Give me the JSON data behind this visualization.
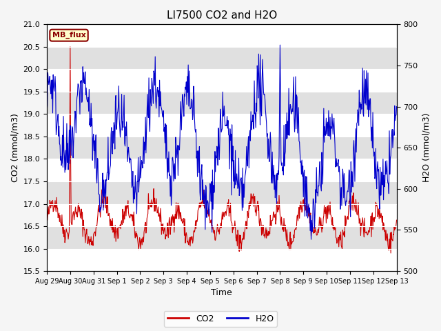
{
  "title": "LI7500 CO2 and H2O",
  "xlabel": "Time",
  "ylabel_left": "CO2 (mmol/m3)",
  "ylabel_right": "H2O (mmol/m3)",
  "ylim_left": [
    15.5,
    21.0
  ],
  "ylim_right": [
    500,
    800
  ],
  "yticks_left": [
    15.5,
    16.0,
    16.5,
    17.0,
    17.5,
    18.0,
    18.5,
    19.0,
    19.5,
    20.0,
    20.5,
    21.0
  ],
  "yticks_right": [
    500,
    550,
    600,
    650,
    700,
    750,
    800
  ],
  "xtick_labels": [
    "Aug 29",
    "Aug 30",
    "Aug 31",
    "Sep 1",
    "Sep 2",
    "Sep 3",
    "Sep 4",
    "Sep 5",
    "Sep 6",
    "Sep 7",
    "Sep 8",
    "Sep 9",
    "Sep 10",
    "Sep 11",
    "Sep 12",
    "Sep 13"
  ],
  "fig_bg_color": "#f5f5f5",
  "plot_bg_color": "#ffffff",
  "band_color": "#e0e0e0",
  "co2_color": "#cc0000",
  "h2o_color": "#0000cc",
  "legend_co2": "CO2",
  "legend_h2o": "H2O",
  "annotation_text": "MB_flux",
  "annotation_bg": "#ffffcc",
  "annotation_border": "#8b0000",
  "title_fontsize": 11,
  "axis_fontsize": 9,
  "tick_fontsize": 8,
  "legend_fontsize": 9
}
